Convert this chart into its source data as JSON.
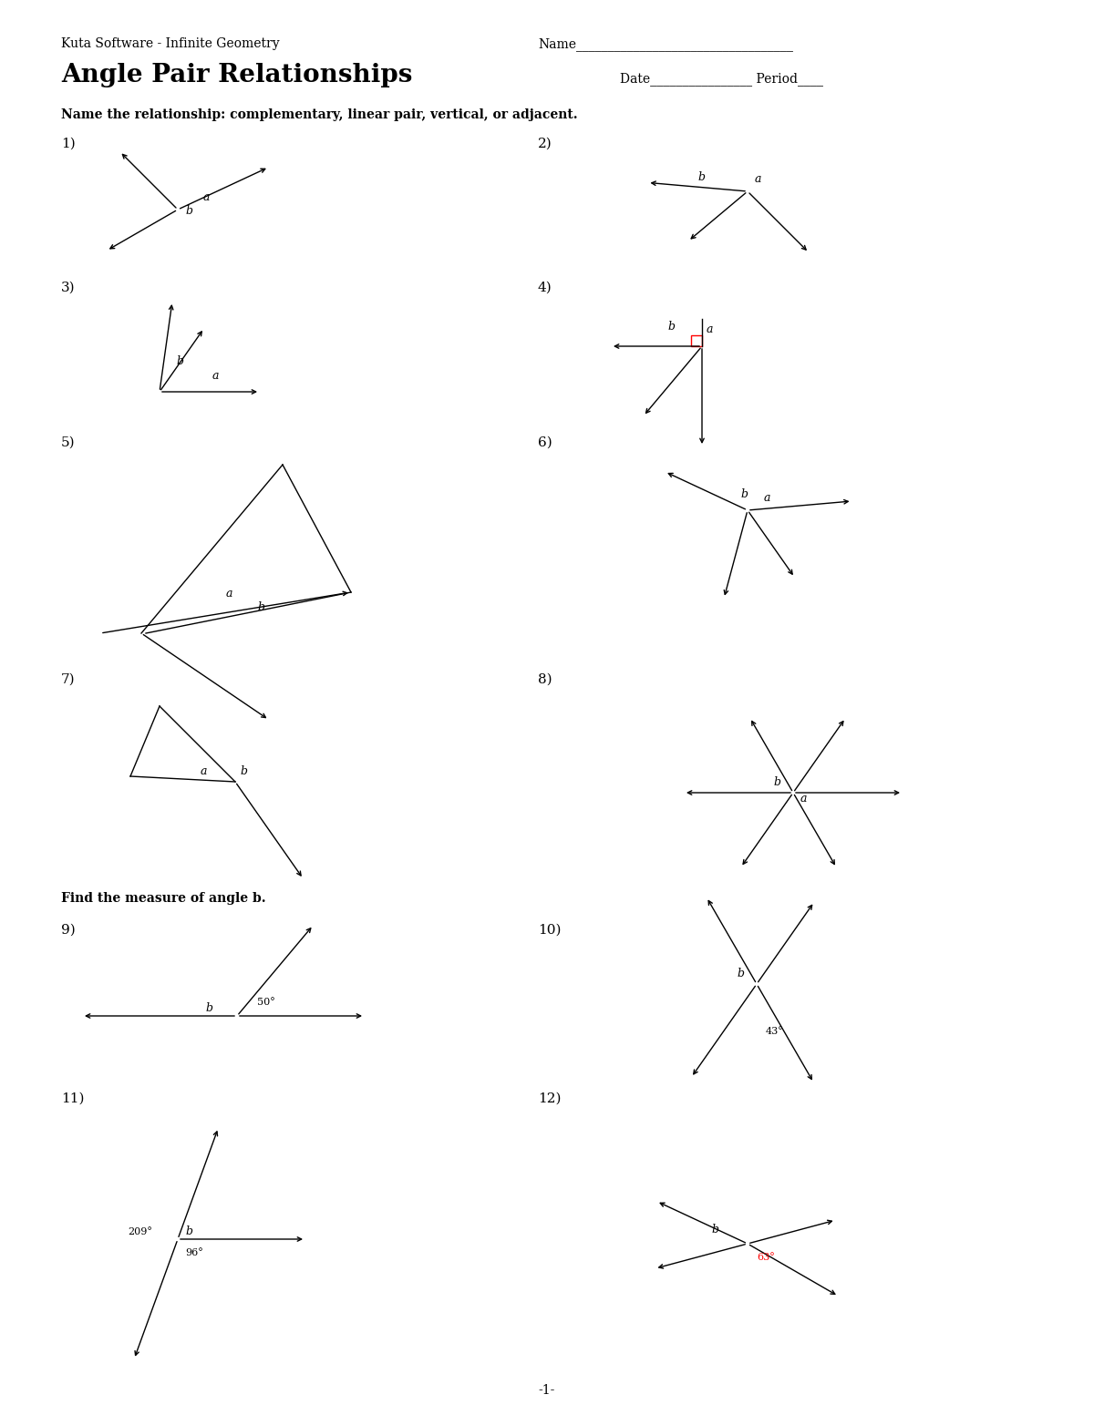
{
  "title": "Angle Pair Relationships",
  "subtitle": "Kuta Software - Infinite Geometry",
  "name_line": "Name__________________________________",
  "date_period": "Date________________ Period____",
  "instruction1": "Name the relationship: complementary, linear pair, vertical, or adjacent.",
  "instruction2": "Find the measure of angle b.",
  "page_num": "-1-",
  "background": "#ffffff",
  "text_color": "#000000"
}
